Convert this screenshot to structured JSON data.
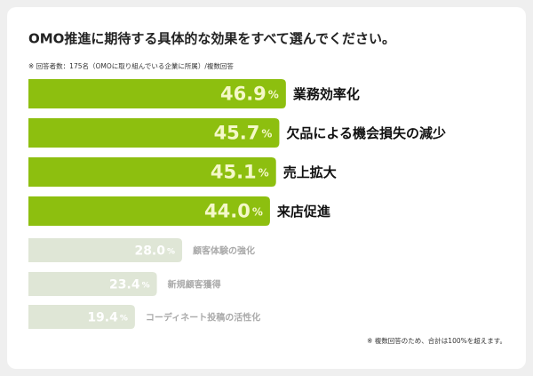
{
  "chart_data": {
    "type": "bar",
    "orientation": "horizontal",
    "title": "OMO推進に期待する具体的な効果をすべて選んでください。",
    "subtitle": "※ 回答者数：175名（OMOに取り組んでいる企業に所属）/複数回答",
    "footnote": "※ 複数回答のため、合計は100%を超えます。",
    "categories": [
      "業務効率化",
      "欠品による機会損失の減少",
      "売上拡大",
      "来店促進",
      "顧客体験の強化",
      "新規顧客獲得",
      "コーディネート投稿の活性化"
    ],
    "values": [
      46.9,
      45.7,
      45.1,
      44.0,
      28.0,
      23.4,
      19.4
    ],
    "value_labels": [
      "46.9%",
      "45.7%",
      "45.1%",
      "44.0%",
      "28.0%",
      "23.4%",
      "19.4%"
    ],
    "colors": [
      "#8dbf0f",
      "#8dbf0f",
      "#8dbf0f",
      "#8dbf0f",
      "#dfe6d6",
      "#dfe6d6",
      "#dfe6d6"
    ]
  }
}
